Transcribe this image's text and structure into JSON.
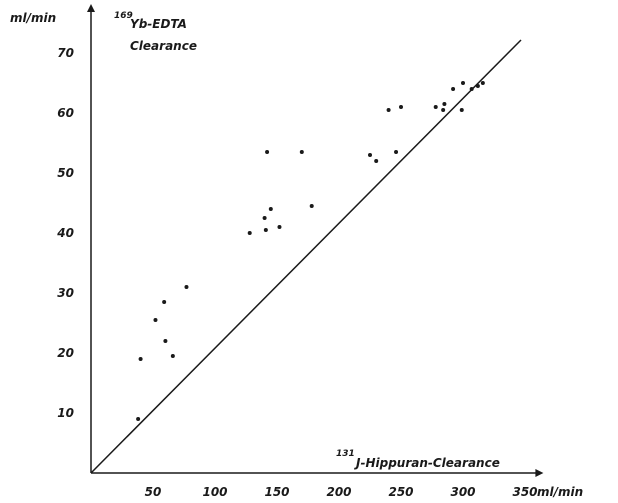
{
  "chart_data": {
    "type": "scatter",
    "title_superscript": "169",
    "title_line1": "Yb-EDTA",
    "title_line2": "Clearance",
    "ylabel": "ml/min",
    "xlabel_superscript": "131",
    "xlabel": "J-Hippuran-Clearance",
    "xunit": "ml/min",
    "xlim": [
      0,
      360
    ],
    "ylim": [
      0,
      73
    ],
    "xticks": [
      50,
      100,
      150,
      200,
      250,
      300,
      350
    ],
    "yticks": [
      10,
      20,
      30,
      40,
      50,
      60,
      70
    ],
    "identity_line": true,
    "grid": false,
    "points": [
      {
        "x": 38,
        "y": 9
      },
      {
        "x": 40,
        "y": 19
      },
      {
        "x": 52,
        "y": 25.5
      },
      {
        "x": 59,
        "y": 28.5
      },
      {
        "x": 60,
        "y": 22
      },
      {
        "x": 66,
        "y": 19.5
      },
      {
        "x": 77,
        "y": 31
      },
      {
        "x": 128,
        "y": 40
      },
      {
        "x": 140,
        "y": 42.5
      },
      {
        "x": 141,
        "y": 40.5
      },
      {
        "x": 142,
        "y": 53.5
      },
      {
        "x": 145,
        "y": 44
      },
      {
        "x": 152,
        "y": 41
      },
      {
        "x": 170,
        "y": 53.5
      },
      {
        "x": 178,
        "y": 44.5
      },
      {
        "x": 225,
        "y": 53
      },
      {
        "x": 230,
        "y": 52
      },
      {
        "x": 240,
        "y": 60.5
      },
      {
        "x": 246,
        "y": 53.5
      },
      {
        "x": 250,
        "y": 61
      },
      {
        "x": 278,
        "y": 61
      },
      {
        "x": 284,
        "y": 60.5
      },
      {
        "x": 285,
        "y": 61.5
      },
      {
        "x": 292,
        "y": 64
      },
      {
        "x": 300,
        "y": 65
      },
      {
        "x": 299,
        "y": 60.5
      },
      {
        "x": 307,
        "y": 64
      },
      {
        "x": 312,
        "y": 64.5
      },
      {
        "x": 316,
        "y": 65
      }
    ]
  }
}
